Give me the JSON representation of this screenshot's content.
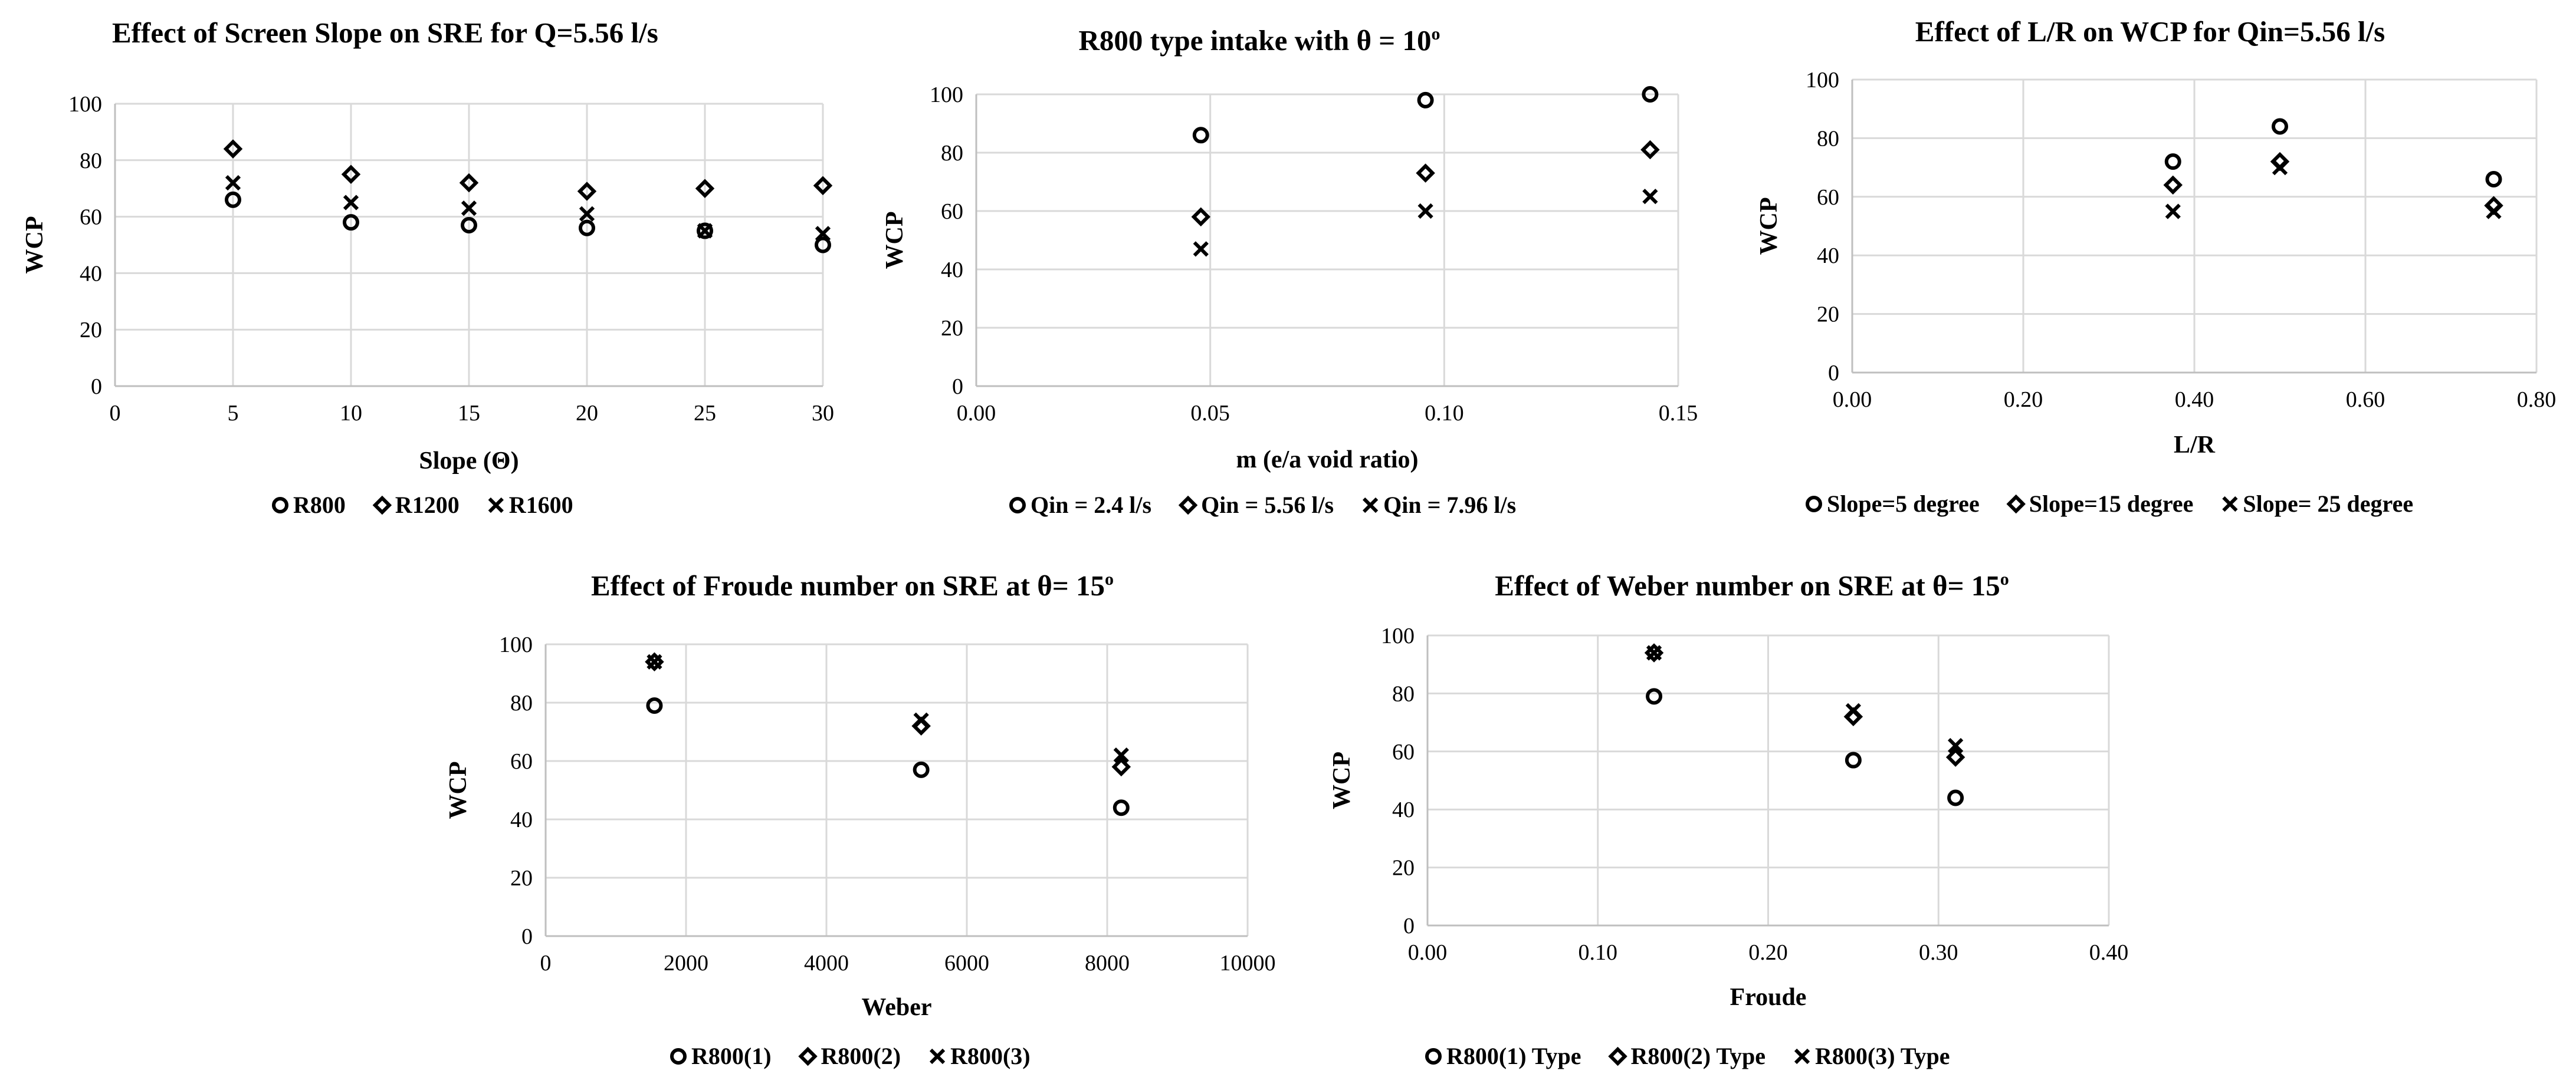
{
  "chart_data": [
    {
      "type": "scatter",
      "title": "Effect of Screen Slope on SRE for Q=5.56 l/s",
      "xlabel": "Slope (Θ)",
      "ylabel": "WCP",
      "xlim": [
        0,
        30
      ],
      "ylim": [
        0,
        100
      ],
      "xticks": [
        "0",
        "5",
        "10",
        "15",
        "20",
        "25",
        "30"
      ],
      "yticks": [
        "0",
        "20",
        "40",
        "60",
        "80",
        "100"
      ],
      "series": [
        {
          "name": "R800",
          "marker": "circle",
          "x": [
            5,
            10,
            15,
            20,
            25,
            30
          ],
          "y": [
            66,
            58,
            57,
            56,
            55,
            50
          ]
        },
        {
          "name": "R1200",
          "marker": "diamond",
          "x": [
            5,
            10,
            15,
            20,
            25,
            30
          ],
          "y": [
            84,
            75,
            72,
            69,
            70,
            71
          ]
        },
        {
          "name": "R1600",
          "marker": "x",
          "x": [
            5,
            10,
            15,
            20,
            25,
            30
          ],
          "y": [
            72,
            65,
            63,
            61,
            55,
            54
          ]
        }
      ]
    },
    {
      "type": "scatter",
      "title": "R800 type intake with θ = 10",
      "title_sup": "o",
      "xlabel": "m (e/a void ratio)",
      "ylabel": "WCP",
      "xlim": [
        0,
        0.15
      ],
      "ylim": [
        0,
        100
      ],
      "xticks": [
        "0.00",
        "0.05",
        "0.10",
        "0.15"
      ],
      "yticks": [
        "0",
        "20",
        "40",
        "60",
        "80",
        "100"
      ],
      "series": [
        {
          "name": "Qin = 2.4 l/s",
          "marker": "circle",
          "x": [
            0.048,
            0.096,
            0.144
          ],
          "y": [
            86,
            98,
            100
          ]
        },
        {
          "name": "Qin = 5.56 l/s",
          "marker": "diamond",
          "x": [
            0.048,
            0.096,
            0.144
          ],
          "y": [
            58,
            73,
            81
          ]
        },
        {
          "name": "Qin = 7.96 l/s",
          "marker": "x",
          "x": [
            0.048,
            0.096,
            0.144
          ],
          "y": [
            47,
            60,
            65
          ]
        }
      ]
    },
    {
      "type": "scatter",
      "title": "Effect of L/R on WCP for Qin=5.56 l/s",
      "xlabel": "L/R",
      "ylabel": "WCP",
      "xlim": [
        0,
        0.8
      ],
      "ylim": [
        0,
        100
      ],
      "xticks": [
        "0.00",
        "0.20",
        "0.40",
        "0.60",
        "0.80"
      ],
      "yticks": [
        "0",
        "20",
        "40",
        "60",
        "80",
        "100"
      ],
      "series": [
        {
          "name": "Slope=5 degree",
          "marker": "circle",
          "x": [
            0.375,
            0.5,
            0.75
          ],
          "y": [
            72,
            84,
            66
          ]
        },
        {
          "name": "Slope=15 degree",
          "marker": "diamond",
          "x": [
            0.375,
            0.5,
            0.75
          ],
          "y": [
            64,
            72,
            57
          ]
        },
        {
          "name": "Slope= 25 degree",
          "marker": "x",
          "x": [
            0.375,
            0.5,
            0.75
          ],
          "y": [
            55,
            70,
            55
          ]
        }
      ]
    },
    {
      "type": "scatter",
      "title": "Effect of Froude number on SRE at θ= 15",
      "title_sup": "o",
      "xlabel": "Weber",
      "ylabel": "WCP",
      "xlim": [
        0,
        10000
      ],
      "ylim": [
        0,
        100
      ],
      "xticks": [
        "0",
        "2000",
        "4000",
        "6000",
        "8000",
        "10000"
      ],
      "yticks": [
        "0",
        "20",
        "40",
        "60",
        "80",
        "100"
      ],
      "series": [
        {
          "name": "R800(1)",
          "marker": "circle",
          "x": [
            1550,
            5350,
            8200
          ],
          "y": [
            79,
            57,
            44
          ]
        },
        {
          "name": "R800(2)",
          "marker": "diamond",
          "x": [
            1550,
            5350,
            8200
          ],
          "y": [
            94,
            72,
            58
          ]
        },
        {
          "name": "R800(3)",
          "marker": "x",
          "x": [
            1550,
            5350,
            8200
          ],
          "y": [
            94,
            74,
            62
          ]
        }
      ]
    },
    {
      "type": "scatter",
      "title": "Effect of Weber number on SRE at θ= 15",
      "title_sup": "o",
      "xlabel": "Froude",
      "ylabel": "WCP",
      "xlim": [
        0,
        0.4
      ],
      "ylim": [
        0,
        100
      ],
      "xticks": [
        "0.00",
        "0.10",
        "0.20",
        "0.30",
        "0.40"
      ],
      "yticks": [
        "0",
        "20",
        "40",
        "60",
        "80",
        "100"
      ],
      "series": [
        {
          "name": "R800(1) Type",
          "marker": "circle",
          "x": [
            0.133,
            0.25,
            0.31
          ],
          "y": [
            79,
            57,
            44
          ]
        },
        {
          "name": "R800(2) Type",
          "marker": "diamond",
          "x": [
            0.133,
            0.25,
            0.31
          ],
          "y": [
            94,
            72,
            58
          ]
        },
        {
          "name": "R800(3) Type",
          "marker": "x",
          "x": [
            0.133,
            0.25,
            0.31
          ],
          "y": [
            94,
            74,
            62
          ]
        }
      ]
    }
  ]
}
